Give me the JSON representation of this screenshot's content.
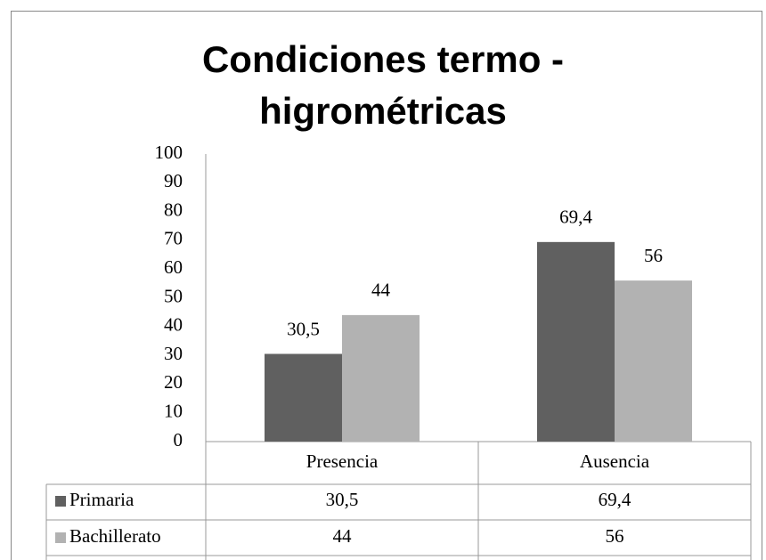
{
  "chart_data": {
    "type": "bar",
    "title": "Condiciones termo - higrométricas",
    "categories": [
      "Presencia",
      "Ausencia"
    ],
    "series": [
      {
        "name": "Primaria",
        "color": "#606060",
        "values": [
          30.5,
          69.4
        ],
        "value_labels": [
          "30,5",
          "69,4"
        ]
      },
      {
        "name": "Bachillerato",
        "color": "#b2b2b2",
        "values": [
          44,
          56
        ],
        "value_labels": [
          "44",
          "56"
        ]
      }
    ],
    "ylim": [
      0,
      100
    ],
    "yticks": [
      0,
      10,
      20,
      30,
      40,
      50,
      60,
      70,
      80,
      90,
      100
    ],
    "grid": false
  }
}
